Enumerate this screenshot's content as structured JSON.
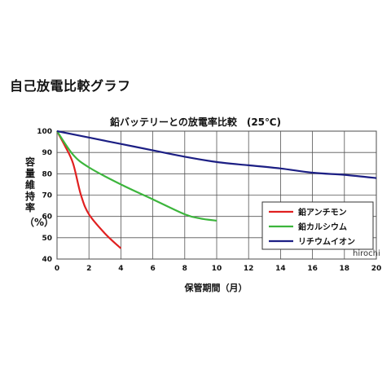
{
  "page": {
    "title": "自己放電比較グラフ",
    "watermark": "hirochi"
  },
  "chart_data": {
    "type": "line",
    "title": "鉛バッテリーとの放電率比較　(25℃)",
    "xlabel": "保管期間（月）",
    "ylabel": "容量維持率",
    "ylabel_unit": "（%）",
    "xlim": [
      0,
      20
    ],
    "ylim": [
      40,
      100
    ],
    "xticks": [
      0,
      2,
      4,
      6,
      8,
      10,
      12,
      14,
      16,
      18,
      20
    ],
    "yticks": [
      40,
      50,
      60,
      70,
      80,
      90,
      100
    ],
    "grid": true,
    "legend_position": "right",
    "series": [
      {
        "name": "鉛アンチモン",
        "color": "#e02020",
        "points": [
          [
            0,
            100
          ],
          [
            0.5,
            93
          ],
          [
            1,
            85
          ],
          [
            1.5,
            70
          ],
          [
            2,
            61
          ],
          [
            3,
            52
          ],
          [
            4,
            45
          ]
        ]
      },
      {
        "name": "鉛カルシウム",
        "color": "#3cb53c",
        "points": [
          [
            0,
            100
          ],
          [
            1,
            89
          ],
          [
            2,
            83
          ],
          [
            4,
            75
          ],
          [
            6,
            68
          ],
          [
            8,
            61
          ],
          [
            9,
            59
          ],
          [
            10,
            58
          ]
        ]
      },
      {
        "name": "リチウムイオン",
        "color": "#1c1f84",
        "points": [
          [
            0,
            100
          ],
          [
            2,
            97
          ],
          [
            4,
            94
          ],
          [
            6,
            91
          ],
          [
            8,
            88
          ],
          [
            10,
            85.5
          ],
          [
            12,
            84
          ],
          [
            14,
            82.5
          ],
          [
            16,
            80.5
          ],
          [
            18,
            79.5
          ],
          [
            20,
            78
          ]
        ]
      }
    ]
  }
}
